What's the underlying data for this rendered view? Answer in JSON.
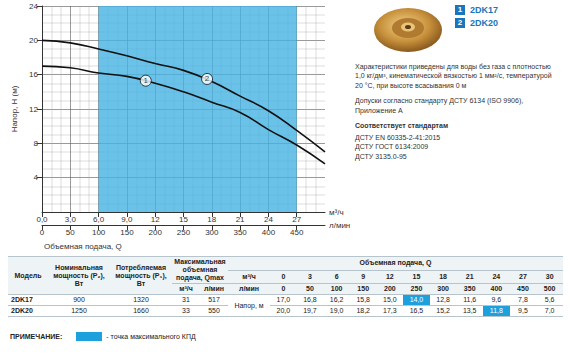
{
  "chart_data": {
    "type": "line",
    "ylabel": "Напор, H (м)",
    "xlabel": "Объемная подача, Q",
    "xunit": "м³/ч",
    "x2unit": "л/мин",
    "x": [
      0,
      3,
      6,
      9,
      12,
      15,
      18,
      21,
      24,
      27,
      30
    ],
    "series": [
      {
        "name": "2DK17",
        "color": "#111111",
        "values": [
          17.0,
          16.8,
          16.2,
          15.8,
          15.0,
          14.0,
          12.8,
          11.6,
          9.6,
          7.8,
          5.6
        ]
      },
      {
        "name": "2DK20",
        "color": "#111111",
        "values": [
          20.0,
          19.7,
          19.0,
          18.2,
          17.3,
          16.5,
          15.2,
          13.5,
          11.8,
          9.5,
          7.0
        ]
      }
    ],
    "xlim": [
      0,
      30
    ],
    "xticks": [
      {
        "value": 0,
        "label": "0,0"
      },
      {
        "value": 3,
        "label": "3,0"
      },
      {
        "value": 6,
        "label": "6,0"
      },
      {
        "value": 9,
        "label": "9,0"
      },
      12,
      15,
      18,
      21,
      24,
      27
    ],
    "x2lim": [
      0,
      500
    ],
    "x2ticks": [
      0,
      50,
      100,
      150,
      200,
      250,
      300,
      350,
      400,
      450
    ],
    "ylim": [
      0,
      24
    ],
    "yticks": [
      4,
      8,
      12,
      16,
      20,
      24
    ],
    "grid": true,
    "shaded_range": {
      "x": [
        6,
        27
      ],
      "color": "#45b3e3"
    },
    "annotations": [
      {
        "text": "1",
        "series": "2DK17",
        "x": 11,
        "y": 15.3
      },
      {
        "text": "2",
        "series": "2DK20",
        "x": 17.5,
        "y": 15.5
      }
    ],
    "legend_color": "#1b75bc"
  },
  "description": {
    "paragraphs": [
      "Характеристики приведены для воды без газа с плотностью 1,0 кг/дм³, кинематической вязкостью 1 мм²/с, температурой 20 °С, при высоте всасывания 0 м",
      "Допуски согласно стандарту ДСТУ 6134 (ISO 9906), Приложение А"
    ],
    "standards_title": "Соответствует стандартам",
    "standards": [
      "ДСТУ EN 60335-2-41:2015",
      "ДСТУ ГОСТ 6134:2009",
      "ДСТУ 3135.0-95"
    ]
  },
  "table": {
    "header": {
      "model": "Модель",
      "p2": "Номинальная мощность (P₂), Вт",
      "p1": "Потребляемая мощность (P₁), Вт",
      "qmax": "Максимальная объемная подача, Qmax",
      "qmax_units": [
        "м³/ч",
        "л/мин"
      ],
      "flow": "Объемная подача, Q",
      "flow_rows": [
        {
          "unit": "м³/ч",
          "values": [
            "0",
            "3",
            "6",
            "9",
            "12",
            "15",
            "18",
            "21",
            "24",
            "27",
            "30"
          ]
        },
        {
          "unit": "л/мин",
          "values": [
            "0",
            "50",
            "100",
            "150",
            "200",
            "250",
            "300",
            "350",
            "400",
            "450",
            "500"
          ]
        }
      ],
      "head": "Напор, м"
    },
    "rows": [
      {
        "cells": [
          "2DK17",
          "900",
          "1320",
          "31",
          "517"
        ],
        "head": [
          {
            "text": "17,0"
          },
          {
            "text": "16,8"
          },
          {
            "text": "16,2"
          },
          {
            "text": "15,8"
          },
          {
            "text": "15,0"
          },
          {
            "text": "14,0",
            "highlight": true
          },
          {
            "text": "12,8"
          },
          {
            "text": "11,6"
          },
          {
            "text": "9,6"
          },
          {
            "text": "7,8"
          },
          {
            "text": "5,6"
          }
        ]
      },
      {
        "cells": [
          "2DK20",
          "1250",
          "1660",
          "33",
          "550"
        ],
        "head": [
          {
            "text": "20,0"
          },
          {
            "text": "19,7"
          },
          {
            "text": "19,0"
          },
          {
            "text": "18,2"
          },
          {
            "text": "17,3"
          },
          {
            "text": "16,5"
          },
          {
            "text": "15,2"
          },
          {
            "text": "13,5"
          },
          {
            "text": "11,8",
            "highlight": true
          },
          {
            "text": "9,5"
          },
          {
            "text": "7,0"
          }
        ]
      }
    ]
  },
  "note": {
    "label": "ПРИМЕЧАНИЕ:",
    "text": "- точка максимального КПД",
    "color": "#1ea0dc"
  }
}
